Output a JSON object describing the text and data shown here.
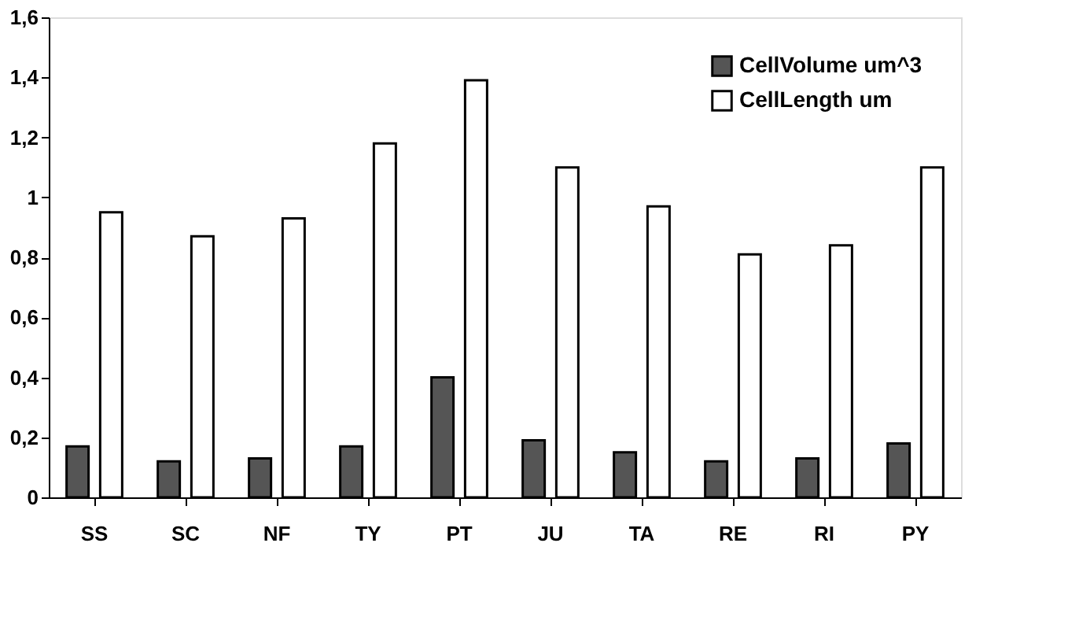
{
  "chart_data": {
    "type": "bar",
    "categories": [
      "SS",
      "SC",
      "NF",
      "TY",
      "PT",
      "JU",
      "TA",
      "RE",
      "RI",
      "PY"
    ],
    "series": [
      {
        "name": "CellVolume um^3",
        "color": "#555555",
        "values": [
          0.17,
          0.12,
          0.13,
          0.17,
          0.4,
          0.19,
          0.15,
          0.12,
          0.13,
          0.18
        ]
      },
      {
        "name": "CellLength um",
        "color": "#ffffff",
        "values": [
          0.95,
          0.87,
          0.93,
          1.18,
          1.39,
          1.1,
          0.97,
          0.81,
          0.84,
          1.1
        ]
      }
    ],
    "ylim": [
      0,
      1.6
    ],
    "yticks": [
      0,
      {
        "value": 0.2,
        "label": "0,2"
      },
      {
        "value": 0.4,
        "label": "0,4"
      },
      {
        "value": 0.6,
        "label": "0,6"
      },
      {
        "value": 0.8,
        "label": "0,8"
      },
      1,
      {
        "value": 1.2,
        "label": "1,2"
      },
      {
        "value": 1.4,
        "label": "1,4"
      },
      {
        "value": 1.6,
        "label": "1,6"
      }
    ],
    "grid": false,
    "legend": "top right"
  }
}
